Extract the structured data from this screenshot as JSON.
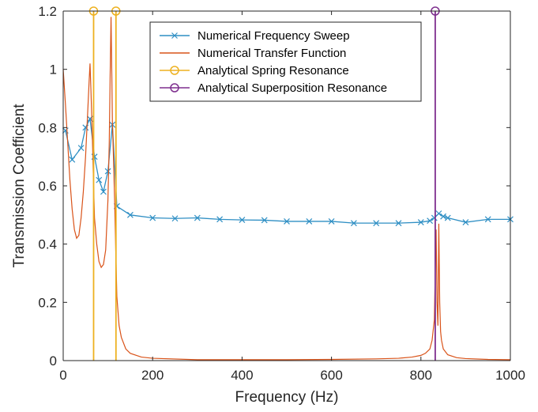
{
  "chart_data": {
    "type": "line",
    "xlabel": "Frequency (Hz)",
    "ylabel": "Transmission Coefficient",
    "xlim": [
      0,
      1000
    ],
    "ylim": [
      0,
      1.2
    ],
    "x_ticks": [
      "0",
      "200",
      "400",
      "600",
      "800",
      "1000"
    ],
    "y_ticks": [
      "0",
      "0.2",
      "0.4",
      "0.6",
      "0.8",
      "1",
      "1.2"
    ],
    "x_tick_values": [
      0,
      200,
      400,
      600,
      800,
      1000
    ],
    "y_tick_values": [
      0,
      0.2,
      0.4,
      0.6,
      0.8,
      1.0,
      1.2
    ],
    "grid": false,
    "legend_position": "top-right",
    "series": [
      {
        "name": "Numerical Frequency Sweep",
        "style": "line-x-markers",
        "color": "#2f8fc4",
        "x": [
          5,
          20,
          40,
          50,
          60,
          70,
          80,
          90,
          100,
          110,
          120,
          150,
          200,
          250,
          300,
          350,
          400,
          450,
          500,
          550,
          600,
          650,
          700,
          750,
          800,
          820,
          830,
          840,
          850,
          860,
          900,
          950,
          1000
        ],
        "y": [
          0.79,
          0.69,
          0.73,
          0.8,
          0.83,
          0.7,
          0.62,
          0.58,
          0.65,
          0.81,
          0.53,
          0.5,
          0.49,
          0.488,
          0.49,
          0.485,
          0.483,
          0.482,
          0.478,
          0.478,
          0.478,
          0.472,
          0.472,
          0.472,
          0.475,
          0.48,
          0.49,
          0.505,
          0.495,
          0.49,
          0.475,
          0.485,
          0.485
        ]
      },
      {
        "name": "Numerical Transfer Function",
        "style": "line",
        "color": "#d95319",
        "x": [
          0,
          5,
          10,
          15,
          20,
          25,
          30,
          35,
          40,
          45,
          50,
          55,
          58,
          60,
          62,
          65,
          68,
          70,
          75,
          80,
          85,
          90,
          95,
          100,
          103,
          105,
          107,
          109,
          110,
          112,
          115,
          118,
          120,
          125,
          130,
          140,
          150,
          175,
          200,
          300,
          400,
          500,
          600,
          700,
          750,
          780,
          800,
          810,
          820,
          825,
          830,
          832,
          834,
          836,
          838,
          840,
          842,
          844,
          846,
          850,
          860,
          880,
          900,
          950,
          1000
        ],
        "y": [
          1.0,
          0.88,
          0.75,
          0.62,
          0.52,
          0.45,
          0.42,
          0.43,
          0.49,
          0.58,
          0.7,
          0.86,
          0.96,
          1.02,
          0.93,
          0.78,
          0.6,
          0.49,
          0.4,
          0.34,
          0.32,
          0.33,
          0.38,
          0.55,
          0.75,
          0.98,
          1.18,
          0.95,
          0.82,
          0.72,
          0.55,
          0.35,
          0.22,
          0.12,
          0.08,
          0.04,
          0.025,
          0.012,
          0.008,
          0.003,
          0.003,
          0.003,
          0.004,
          0.006,
          0.008,
          0.012,
          0.018,
          0.025,
          0.04,
          0.07,
          0.14,
          0.3,
          0.45,
          0.2,
          0.12,
          0.47,
          0.2,
          0.1,
          0.07,
          0.04,
          0.02,
          0.01,
          0.007,
          0.004,
          0.003
        ]
      },
      {
        "name": "Analytical Spring Resonance",
        "style": "stem-circle",
        "color": "#edb120",
        "x": [
          68,
          118
        ],
        "y": [
          1.2,
          1.2
        ]
      },
      {
        "name": "Analytical Superposition Resonance",
        "style": "stem-circle",
        "color": "#7e2f8e",
        "x": [
          832
        ],
        "y": [
          1.2
        ]
      }
    ]
  }
}
